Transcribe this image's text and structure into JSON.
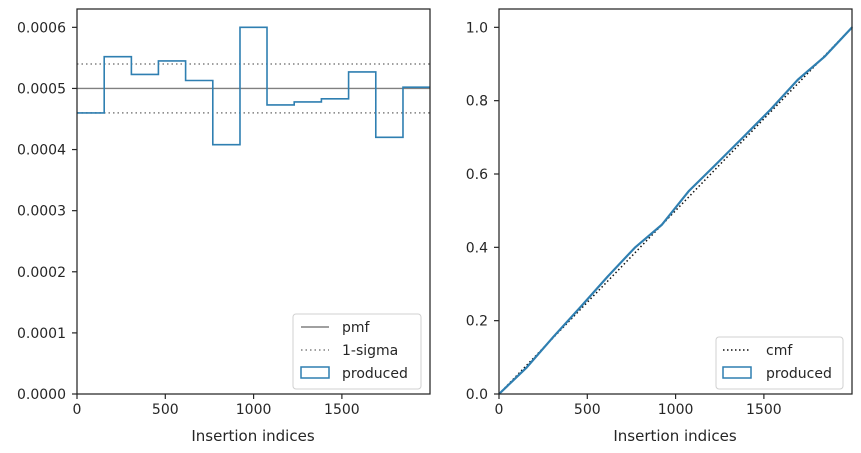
{
  "colors": {
    "produced": "#2f7fb1",
    "pmf": "#808080",
    "sigma": "#808080",
    "cmf": "#111111",
    "axis": "#262626"
  },
  "chart_data": [
    {
      "type": "histogram",
      "xlabel": "Insertion indices",
      "ylabel": "",
      "xlim": [
        0,
        1999
      ],
      "ylim": [
        0,
        0.00063
      ],
      "x_ticks": [
        0,
        500,
        1000,
        1500
      ],
      "y_ticks": [
        0.0,
        0.0001,
        0.0002,
        0.0003,
        0.0004,
        0.0005,
        0.0006
      ],
      "x_tick_labels": [
        "0",
        "500",
        "1000",
        "1500"
      ],
      "y_tick_labels": [
        "0.0000",
        "0.0001",
        "0.0002",
        "0.0003",
        "0.0004",
        "0.0005",
        "0.0006"
      ],
      "pmf": 0.0005,
      "sigma_lower": 0.00046,
      "sigma_upper": 0.00054,
      "bin_edges": [
        0,
        154,
        308,
        461,
        615,
        769,
        923,
        1076,
        1230,
        1384,
        1538,
        1692,
        1846,
        1999
      ],
      "bin_values": [
        0.00046,
        0.000552,
        0.000523,
        0.000545,
        0.000513,
        0.000408,
        0.0006,
        0.000473,
        0.000478,
        0.000483,
        0.000527,
        0.00042,
        0.000502
      ],
      "legend": {
        "position": "lower right",
        "entries": [
          "pmf",
          "1-sigma",
          "produced"
        ]
      }
    },
    {
      "type": "line",
      "xlabel": "Insertion indices",
      "ylabel": "",
      "xlim": [
        0,
        1999
      ],
      "ylim": [
        0,
        1.05
      ],
      "x_ticks": [
        0,
        500,
        1000,
        1500
      ],
      "y_ticks": [
        0.0,
        0.2,
        0.4,
        0.6,
        0.8,
        1.0
      ],
      "x_tick_labels": [
        "0",
        "500",
        "1000",
        "1500"
      ],
      "y_tick_labels": [
        "0.0",
        "0.2",
        "0.4",
        "0.6",
        "0.8",
        "1.0"
      ],
      "series": [
        {
          "name": "cmf",
          "x": [
            0,
            1999
          ],
          "y": [
            0.0,
            1.0
          ]
        },
        {
          "name": "produced",
          "x": [
            0,
            154,
            308,
            461,
            615,
            769,
            923,
            1076,
            1230,
            1384,
            1538,
            1692,
            1846,
            1999
          ],
          "y": [
            0.0,
            0.071,
            0.156,
            0.237,
            0.32,
            0.399,
            0.462,
            0.554,
            0.627,
            0.701,
            0.776,
            0.857,
            0.921,
            1.0
          ]
        }
      ],
      "legend": {
        "position": "lower right",
        "entries": [
          "cmf",
          "produced"
        ]
      }
    }
  ]
}
